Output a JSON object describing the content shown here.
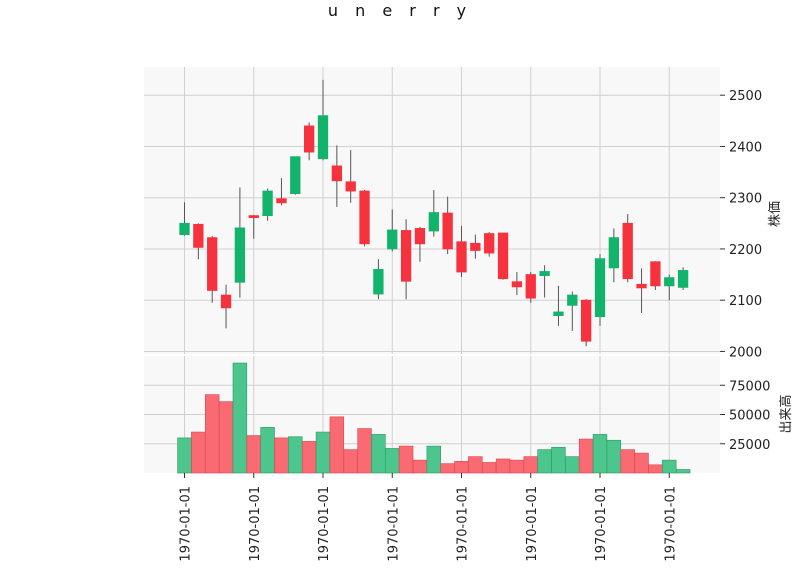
{
  "chart_data": {
    "type": "candlestick",
    "title": "u n e r r y",
    "price_ylabel": "株価",
    "volume_ylabel": "出来高",
    "price_ylim": [
      1995,
      2555
    ],
    "price_yticks": [
      2000,
      2100,
      2200,
      2300,
      2400,
      2500
    ],
    "volume_ylim": [
      0,
      100000
    ],
    "volume_yticks": [
      25000,
      50000,
      75000
    ],
    "volume_ytick_labels": [
      "25000",
      "50000",
      "75000"
    ],
    "xtick_labels": [
      "1970-01-01",
      "1970-01-01",
      "1970-01-01",
      "1970-01-01",
      "1970-01-01",
      "1970-01-01",
      "1970-01-01",
      "1970-01-01"
    ],
    "xtick_positions": [
      0,
      5,
      10,
      15,
      20,
      25,
      30,
      35
    ],
    "grid": true,
    "up_color": "#12b36b",
    "down_color": "#f6323e",
    "volume_up_color": "#4cc68d",
    "volume_down_color": "#f96a73",
    "candles": [
      {
        "open": 2228,
        "high": 2291,
        "low": 2226,
        "close": 2250,
        "volume": 30000
      },
      {
        "open": 2248,
        "high": 2250,
        "low": 2180,
        "close": 2203,
        "volume": 35000
      },
      {
        "open": 2222,
        "high": 2225,
        "low": 2095,
        "close": 2119,
        "volume": 67000
      },
      {
        "open": 2110,
        "high": 2130,
        "low": 2045,
        "close": 2085,
        "volume": 61000
      },
      {
        "open": 2135,
        "high": 2320,
        "low": 2105,
        "close": 2241,
        "volume": 94000
      },
      {
        "open": 2265,
        "high": 2266,
        "low": 2220,
        "close": 2264,
        "volume": 32000
      },
      {
        "open": 2265,
        "high": 2318,
        "low": 2255,
        "close": 2313,
        "volume": 39000
      },
      {
        "open": 2298,
        "high": 2338,
        "low": 2285,
        "close": 2290,
        "volume": 30000
      },
      {
        "open": 2308,
        "high": 2380,
        "low": 2306,
        "close": 2380,
        "volume": 31000
      },
      {
        "open": 2440,
        "high": 2447,
        "low": 2373,
        "close": 2389,
        "volume": 27000
      },
      {
        "open": 2376,
        "high": 2530,
        "low": 2373,
        "close": 2460,
        "volume": 35000
      },
      {
        "open": 2362,
        "high": 2402,
        "low": 2282,
        "close": 2333,
        "volume": 48000
      },
      {
        "open": 2331,
        "high": 2393,
        "low": 2290,
        "close": 2313,
        "volume": 20000
      },
      {
        "open": 2313,
        "high": 2315,
        "low": 2205,
        "close": 2210,
        "volume": 38000
      },
      {
        "open": 2112,
        "high": 2180,
        "low": 2102,
        "close": 2160,
        "volume": 33000
      },
      {
        "open": 2200,
        "high": 2277,
        "low": 2195,
        "close": 2237,
        "volume": 21000
      },
      {
        "open": 2236,
        "high": 2258,
        "low": 2102,
        "close": 2137,
        "volume": 23000
      },
      {
        "open": 2240,
        "high": 2243,
        "low": 2175,
        "close": 2210,
        "volume": 11000
      },
      {
        "open": 2235,
        "high": 2315,
        "low": 2224,
        "close": 2271,
        "volume": 23000
      },
      {
        "open": 2270,
        "high": 2302,
        "low": 2190,
        "close": 2200,
        "volume": 8000
      },
      {
        "open": 2214,
        "high": 2245,
        "low": 2145,
        "close": 2155,
        "volume": 10000
      },
      {
        "open": 2211,
        "high": 2228,
        "low": 2181,
        "close": 2197,
        "volume": 14000
      },
      {
        "open": 2230,
        "high": 2233,
        "low": 2185,
        "close": 2192,
        "volume": 9000
      },
      {
        "open": 2231,
        "high": 2232,
        "low": 2140,
        "close": 2142,
        "volume": 12000
      },
      {
        "open": 2136,
        "high": 2155,
        "low": 2110,
        "close": 2126,
        "volume": 11000
      },
      {
        "open": 2150,
        "high": 2155,
        "low": 2095,
        "close": 2104,
        "volume": 14000
      },
      {
        "open": 2148,
        "high": 2168,
        "low": 2105,
        "close": 2156,
        "volume": 20000
      },
      {
        "open": 2070,
        "high": 2128,
        "low": 2050,
        "close": 2077,
        "volume": 22000
      },
      {
        "open": 2090,
        "high": 2117,
        "low": 2040,
        "close": 2110,
        "volume": 14000
      },
      {
        "open": 2100,
        "high": 2102,
        "low": 2010,
        "close": 2020,
        "volume": 29000
      },
      {
        "open": 2068,
        "high": 2190,
        "low": 2050,
        "close": 2181,
        "volume": 33000
      },
      {
        "open": 2163,
        "high": 2240,
        "low": 2135,
        "close": 2222,
        "volume": 28000
      },
      {
        "open": 2250,
        "high": 2268,
        "low": 2135,
        "close": 2142,
        "volume": 20000
      },
      {
        "open": 2131,
        "high": 2162,
        "low": 2075,
        "close": 2124,
        "volume": 17000
      },
      {
        "open": 2175,
        "high": 2176,
        "low": 2120,
        "close": 2128,
        "volume": 7000
      },
      {
        "open": 2128,
        "high": 2150,
        "low": 2100,
        "close": 2144,
        "volume": 11000
      },
      {
        "open": 2125,
        "high": 2164,
        "low": 2120,
        "close": 2158,
        "volume": 3000
      }
    ]
  }
}
